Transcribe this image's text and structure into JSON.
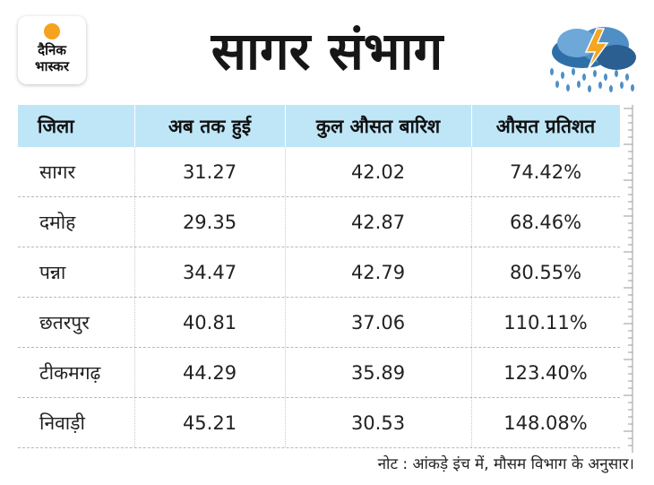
{
  "brand": {
    "line1": "दैनिक",
    "line2": "भास्कर"
  },
  "title": "सागर संभाग",
  "icons": {
    "logo": "dainik-bhaskar-logo",
    "weather": "rain-cloud-lightning-icon"
  },
  "colors": {
    "header_bg": "#bfe6f7",
    "sun": "#f6a21c",
    "bolt": "#f5a623",
    "cloud": "#4f8fc6"
  },
  "table": {
    "headers": [
      "जिला",
      "अब तक हुई",
      "कुल औसत बारिश",
      "औसत प्रतिशत"
    ],
    "rows": [
      [
        "सागर",
        "31.27",
        "42.02",
        "74.42%"
      ],
      [
        "दमोह",
        "29.35",
        "42.87",
        "68.46%"
      ],
      [
        "पन्ना",
        "34.47",
        "42.79",
        "80.55%"
      ],
      [
        "छतरपुर",
        "40.81",
        "37.06",
        "110.11%"
      ],
      [
        "टीकमगढ़",
        "44.29",
        "35.89",
        "123.40%"
      ],
      [
        "निवाड़ी",
        "45.21",
        "30.53",
        "148.08%"
      ]
    ]
  },
  "note": "नोट : आंकड़े इंच में, मौसम विभाग के अनुसार।"
}
